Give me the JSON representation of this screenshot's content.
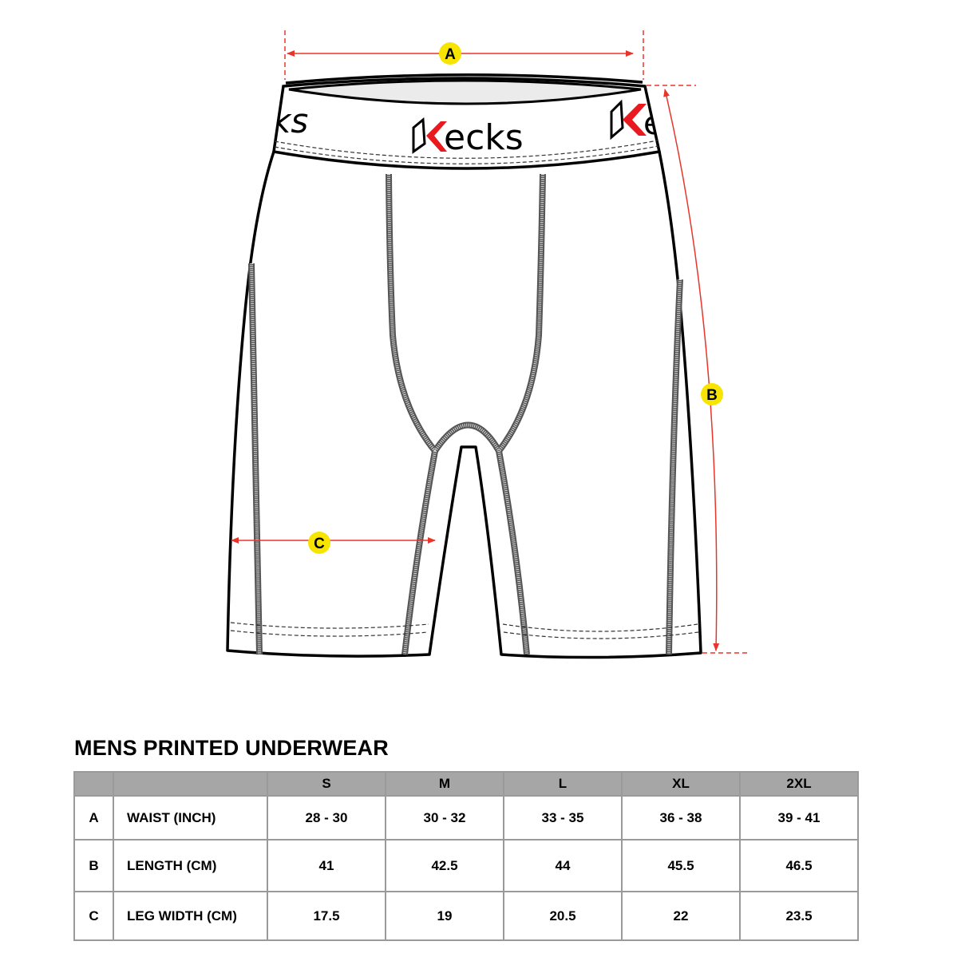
{
  "diagram": {
    "brand_logo": "Kecks",
    "markers": {
      "a": "A",
      "b": "B",
      "c": "C"
    },
    "colors": {
      "dimension_line": "#e8352b",
      "marker_fill": "#f7e400",
      "logo_red": "#e8191f",
      "seam": "#555555"
    }
  },
  "table": {
    "title": "MENS PRINTED UNDERWEAR",
    "header_fill": "#a6a6a6",
    "sizes": [
      "S",
      "M",
      "L",
      "XL",
      "2XL"
    ],
    "rows": [
      {
        "key": "A",
        "label": "WAIST (INCH)",
        "values": [
          "28 - 30",
          "30 - 32",
          "33 - 35",
          "36 - 38",
          "39 - 41"
        ]
      },
      {
        "key": "B",
        "label": "LENGTH (CM)",
        "values": [
          "41",
          "42.5",
          "44",
          "45.5",
          "46.5"
        ]
      },
      {
        "key": "C",
        "label": "LEG WIDTH (CM)",
        "values": [
          "17.5",
          "19",
          "20.5",
          "22",
          "23.5"
        ]
      }
    ]
  }
}
